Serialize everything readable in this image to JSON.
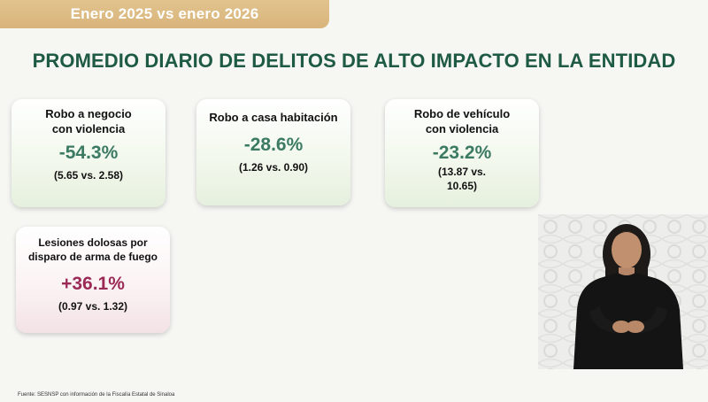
{
  "banner": {
    "text": "Enero 2025 vs enero 2026"
  },
  "title": "PROMEDIO DIARIO DE DELITOS DE ALTO IMPACTO EN LA ENTIDAD",
  "cards": [
    {
      "label_line1": "Robo a negocio",
      "label_line2": "con violencia",
      "change": "-54.3%",
      "comparison_line1": "(5.65 vs. 2.58)",
      "comparison_line2": ""
    },
    {
      "label_line1": "Robo a casa habitación",
      "label_line2": "",
      "change": "-28.6%",
      "comparison_line1": "(1.26 vs. 0.90)",
      "comparison_line2": ""
    },
    {
      "label_line1": "Robo de vehículo",
      "label_line2": "con violencia",
      "change": "-23.2%",
      "comparison_line1": "(13.87 vs.",
      "comparison_line2": "10.65)"
    },
    {
      "label_line1": "Lesiones dolosas por",
      "label_line2": "disparo de arma de fuego",
      "change": "+36.1%",
      "comparison_line1": "(0.97 vs. 1.32)",
      "comparison_line2": ""
    }
  ],
  "source": "Fuente: SESNSP con información de la Fiscalía Estatal de Sinaloa",
  "colors": {
    "banner": "#d8b47b",
    "title": "#1e5a44",
    "decrease": "#3b7a63",
    "increase": "#9c2a57"
  },
  "video_overlay": {
    "icon": "sign-language-interpreter-video"
  }
}
